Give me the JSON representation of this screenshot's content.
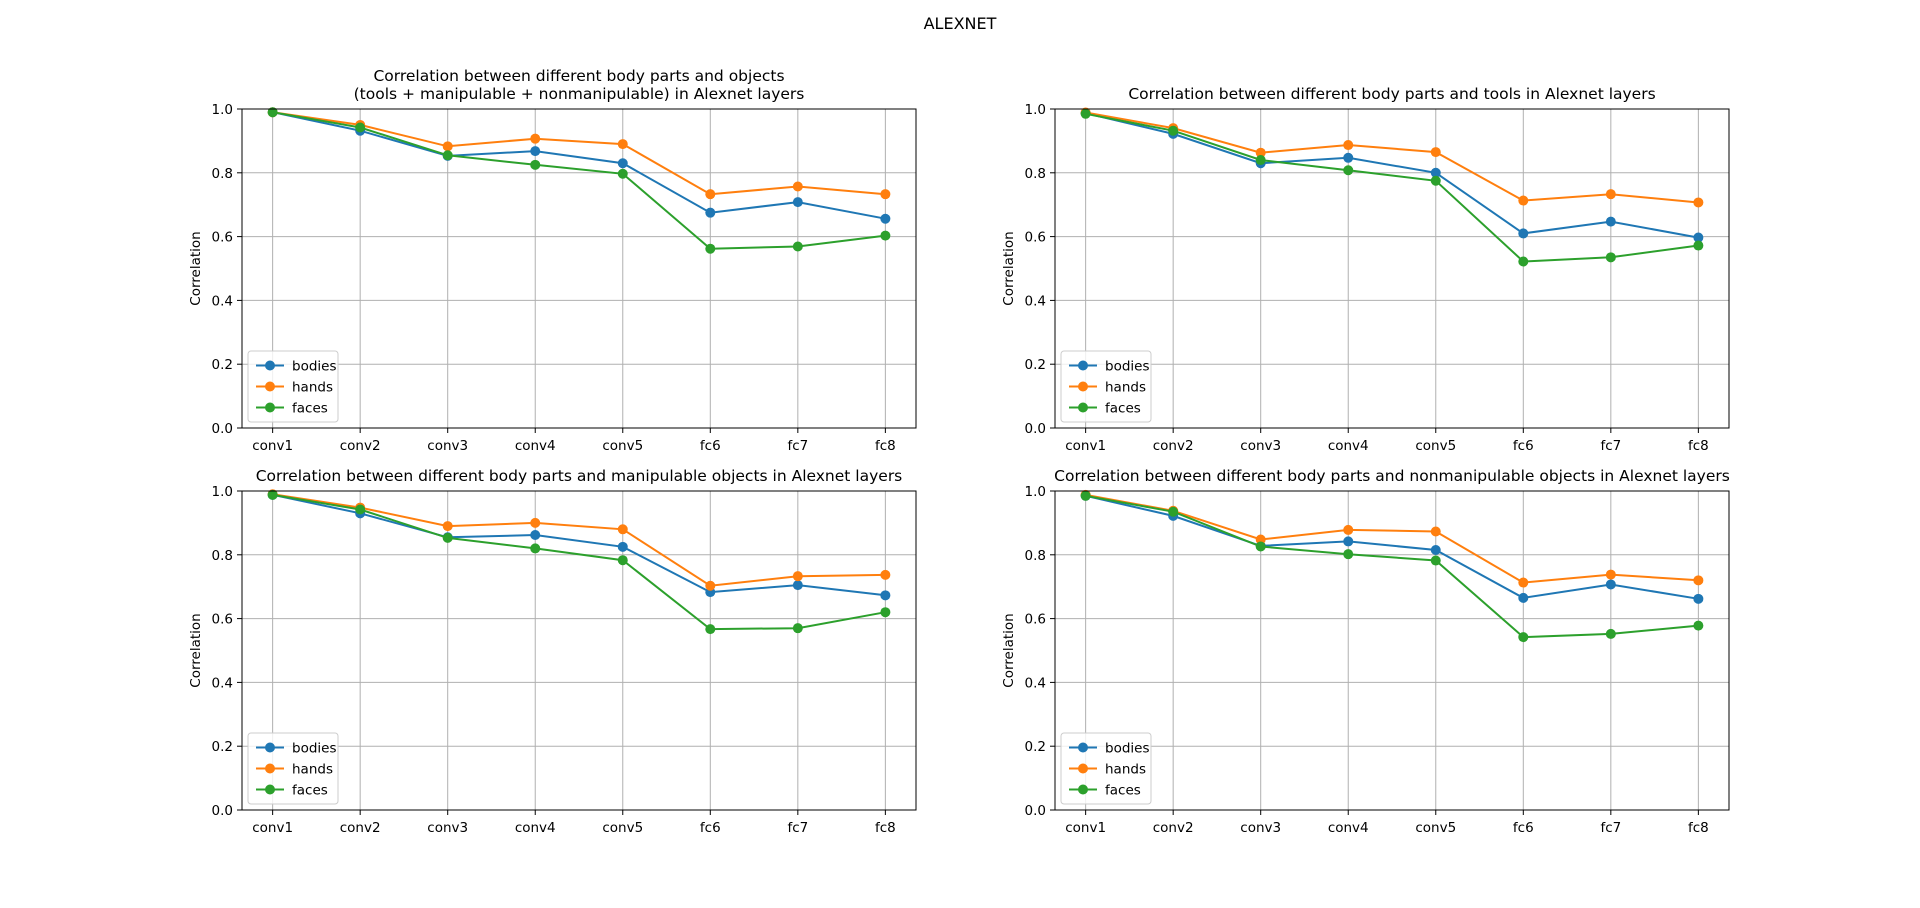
{
  "figure": {
    "suptitle": "ALEXNET"
  },
  "chart_data": [
    {
      "type": "line",
      "title": "Correlation between different body parts and objects\n(tools + manipulable + nonmanipulable) in Alexnet layers",
      "xlabel": "",
      "ylabel": "Correlation",
      "ylim": [
        0,
        1
      ],
      "yticks": [
        "0.0",
        "0.2",
        "0.4",
        "0.6",
        "0.8",
        "1.0"
      ],
      "grid": true,
      "legend_loc": "lower-left",
      "categories": [
        "conv1",
        "conv2",
        "conv3",
        "conv4",
        "conv5",
        "fc6",
        "fc7",
        "fc8"
      ],
      "series": [
        {
          "name": "bodies",
          "color": "#1f77b4",
          "values": [
            0.99,
            0.932,
            0.853,
            0.868,
            0.83,
            0.675,
            0.708,
            0.656
          ]
        },
        {
          "name": "hands",
          "color": "#ff7f0e",
          "values": [
            0.99,
            0.95,
            0.883,
            0.907,
            0.89,
            0.733,
            0.757,
            0.733
          ]
        },
        {
          "name": "faces",
          "color": "#2ca02c",
          "values": [
            0.99,
            0.942,
            0.855,
            0.825,
            0.797,
            0.562,
            0.569,
            0.603
          ]
        }
      ]
    },
    {
      "type": "line",
      "title": "Correlation between different body parts and tools in Alexnet layers",
      "xlabel": "",
      "ylabel": "Correlation",
      "ylim": [
        0,
        1
      ],
      "yticks": [
        "0.0",
        "0.2",
        "0.4",
        "0.6",
        "0.8",
        "1.0"
      ],
      "grid": true,
      "legend_loc": "lower-left",
      "categories": [
        "conv1",
        "conv2",
        "conv3",
        "conv4",
        "conv5",
        "fc6",
        "fc7",
        "fc8"
      ],
      "series": [
        {
          "name": "bodies",
          "color": "#1f77b4",
          "values": [
            0.987,
            0.922,
            0.83,
            0.847,
            0.8,
            0.61,
            0.647,
            0.597
          ]
        },
        {
          "name": "hands",
          "color": "#ff7f0e",
          "values": [
            0.989,
            0.94,
            0.863,
            0.887,
            0.865,
            0.713,
            0.733,
            0.707
          ]
        },
        {
          "name": "faces",
          "color": "#2ca02c",
          "values": [
            0.985,
            0.932,
            0.84,
            0.808,
            0.775,
            0.522,
            0.535,
            0.572
          ]
        }
      ]
    },
    {
      "type": "line",
      "title": "Correlation between different body parts and manipulable objects in Alexnet layers",
      "xlabel": "",
      "ylabel": "Correlation",
      "ylim": [
        0,
        1
      ],
      "yticks": [
        "0.0",
        "0.2",
        "0.4",
        "0.6",
        "0.8",
        "1.0"
      ],
      "grid": true,
      "legend_loc": "lower-left",
      "categories": [
        "conv1",
        "conv2",
        "conv3",
        "conv4",
        "conv5",
        "fc6",
        "fc7",
        "fc8"
      ],
      "series": [
        {
          "name": "bodies",
          "color": "#1f77b4",
          "values": [
            0.988,
            0.93,
            0.855,
            0.862,
            0.825,
            0.683,
            0.705,
            0.673
          ]
        },
        {
          "name": "hands",
          "color": "#ff7f0e",
          "values": [
            0.99,
            0.948,
            0.89,
            0.9,
            0.88,
            0.703,
            0.733,
            0.737
          ]
        },
        {
          "name": "faces",
          "color": "#2ca02c",
          "values": [
            0.988,
            0.942,
            0.853,
            0.82,
            0.783,
            0.567,
            0.57,
            0.62
          ]
        }
      ]
    },
    {
      "type": "line",
      "title": "Correlation between different body parts and nonmanipulable objects in Alexnet layers",
      "xlabel": "",
      "ylabel": "Correlation",
      "ylim": [
        0,
        1
      ],
      "yticks": [
        "0.0",
        "0.2",
        "0.4",
        "0.6",
        "0.8",
        "1.0"
      ],
      "grid": true,
      "legend_loc": "lower-left",
      "categories": [
        "conv1",
        "conv2",
        "conv3",
        "conv4",
        "conv5",
        "fc6",
        "fc7",
        "fc8"
      ],
      "series": [
        {
          "name": "bodies",
          "color": "#1f77b4",
          "values": [
            0.985,
            0.922,
            0.828,
            0.842,
            0.815,
            0.665,
            0.707,
            0.662
          ]
        },
        {
          "name": "hands",
          "color": "#ff7f0e",
          "values": [
            0.988,
            0.938,
            0.848,
            0.878,
            0.873,
            0.713,
            0.738,
            0.72
          ]
        },
        {
          "name": "faces",
          "color": "#2ca02c",
          "values": [
            0.985,
            0.935,
            0.826,
            0.802,
            0.782,
            0.542,
            0.552,
            0.578
          ]
        }
      ]
    }
  ]
}
